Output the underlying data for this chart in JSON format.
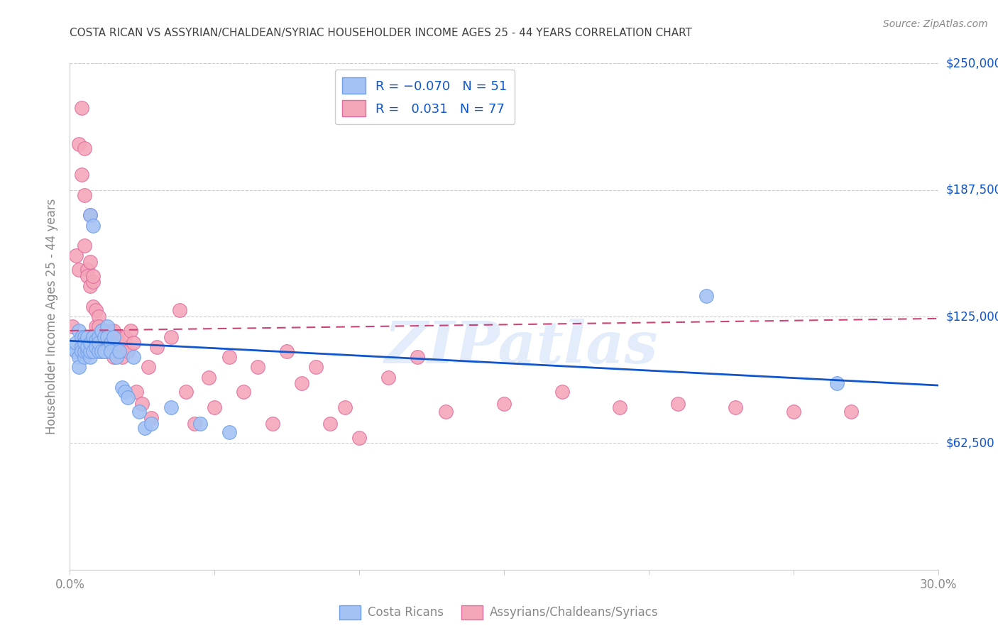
{
  "title": "COSTA RICAN VS ASSYRIAN/CHALDEAN/SYRIAC HOUSEHOLDER INCOME AGES 25 - 44 YEARS CORRELATION CHART",
  "source": "Source: ZipAtlas.com",
  "ylabel": "Householder Income Ages 25 - 44 years",
  "xlim": [
    0.0,
    0.3
  ],
  "ylim": [
    0,
    250000
  ],
  "yticks": [
    0,
    62500,
    125000,
    187500,
    250000
  ],
  "ytick_labels": [
    "",
    "$62,500",
    "$125,000",
    "$187,500",
    "$250,000"
  ],
  "xticks": [
    0.0,
    0.05,
    0.1,
    0.15,
    0.2,
    0.25,
    0.3
  ],
  "xtick_labels": [
    "0.0%",
    "",
    "",
    "",
    "",
    "",
    "30.0%"
  ],
  "watermark": "ZIPatlas",
  "blue_color": "#a4c2f4",
  "pink_color": "#f4a7b9",
  "blue_edge_color": "#6d9eeb",
  "pink_edge_color": "#e06c9f",
  "blue_line_color": "#1155cc",
  "pink_line_color": "#cc4477",
  "title_color": "#434343",
  "source_color": "#888888",
  "axis_color": "#888888",
  "grid_color": "#cccccc",
  "blue_trend_x": [
    0.0,
    0.3
  ],
  "blue_trend_y": [
    113000,
    91000
  ],
  "pink_trend_x": [
    0.0,
    0.3
  ],
  "pink_trend_y": [
    118000,
    124000
  ],
  "blue_scatter_x": [
    0.001,
    0.002,
    0.002,
    0.003,
    0.003,
    0.003,
    0.004,
    0.004,
    0.004,
    0.005,
    0.005,
    0.005,
    0.005,
    0.006,
    0.006,
    0.006,
    0.007,
    0.007,
    0.007,
    0.007,
    0.008,
    0.008,
    0.008,
    0.009,
    0.009,
    0.01,
    0.01,
    0.01,
    0.011,
    0.011,
    0.012,
    0.012,
    0.013,
    0.013,
    0.014,
    0.014,
    0.015,
    0.016,
    0.017,
    0.018,
    0.019,
    0.02,
    0.022,
    0.024,
    0.026,
    0.028,
    0.035,
    0.045,
    0.055,
    0.22,
    0.265
  ],
  "blue_scatter_y": [
    110000,
    108000,
    112000,
    105000,
    100000,
    118000,
    110000,
    108000,
    115000,
    105000,
    108000,
    115000,
    112000,
    108000,
    115000,
    110000,
    105000,
    108000,
    112000,
    175000,
    115000,
    108000,
    170000,
    113000,
    110000,
    108000,
    115000,
    112000,
    108000,
    118000,
    115000,
    108000,
    120000,
    115000,
    112000,
    108000,
    115000,
    105000,
    108000,
    90000,
    88000,
    85000,
    105000,
    78000,
    70000,
    72000,
    80000,
    72000,
    68000,
    135000,
    92000
  ],
  "pink_scatter_x": [
    0.001,
    0.002,
    0.002,
    0.003,
    0.003,
    0.004,
    0.004,
    0.005,
    0.005,
    0.005,
    0.006,
    0.006,
    0.007,
    0.007,
    0.007,
    0.008,
    0.008,
    0.008,
    0.009,
    0.009,
    0.009,
    0.01,
    0.01,
    0.01,
    0.011,
    0.011,
    0.012,
    0.012,
    0.013,
    0.013,
    0.013,
    0.014,
    0.014,
    0.015,
    0.015,
    0.015,
    0.016,
    0.016,
    0.017,
    0.017,
    0.018,
    0.018,
    0.019,
    0.02,
    0.021,
    0.022,
    0.023,
    0.025,
    0.027,
    0.028,
    0.03,
    0.035,
    0.038,
    0.04,
    0.043,
    0.048,
    0.05,
    0.055,
    0.06,
    0.065,
    0.07,
    0.075,
    0.08,
    0.085,
    0.09,
    0.095,
    0.1,
    0.11,
    0.12,
    0.13,
    0.15,
    0.17,
    0.19,
    0.21,
    0.23,
    0.25,
    0.27
  ],
  "pink_scatter_y": [
    120000,
    155000,
    108000,
    210000,
    148000,
    228000,
    195000,
    208000,
    185000,
    160000,
    148000,
    145000,
    152000,
    140000,
    175000,
    142000,
    130000,
    145000,
    120000,
    128000,
    115000,
    125000,
    115000,
    120000,
    115000,
    118000,
    112000,
    118000,
    108000,
    115000,
    112000,
    118000,
    108000,
    115000,
    118000,
    105000,
    108000,
    115000,
    108000,
    112000,
    105000,
    110000,
    115000,
    108000,
    118000,
    112000,
    88000,
    82000,
    100000,
    75000,
    110000,
    115000,
    128000,
    88000,
    72000,
    95000,
    80000,
    105000,
    88000,
    100000,
    72000,
    108000,
    92000,
    100000,
    72000,
    80000,
    65000,
    95000,
    105000,
    78000,
    82000,
    88000,
    80000,
    82000,
    80000,
    78000,
    78000
  ]
}
